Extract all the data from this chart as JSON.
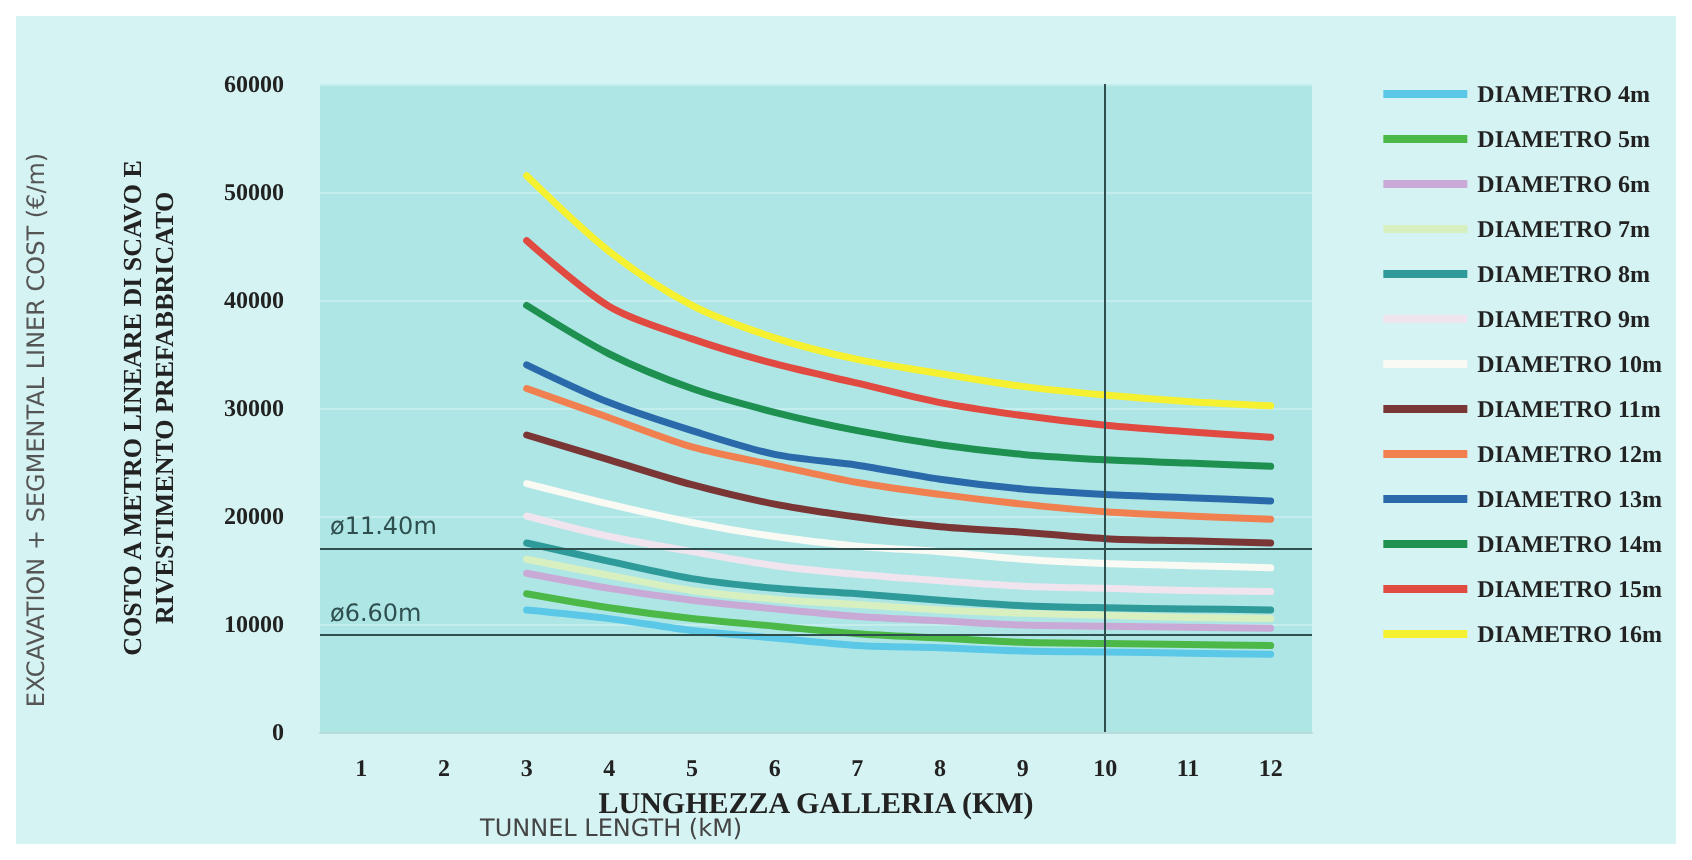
{
  "chart_data": {
    "type": "line",
    "xlabel": "LUNGHEZZA GALLERIA (KM)",
    "ylabel": "COSTO A METRO LINEARE DI SCAVO E\nRIVESTIMENTO PREFABBRICATO",
    "annotations": [
      "EXCAVATION + SEGMENTAL LINER COST (€/m)",
      "TUNNEL LENGTH (kM)"
    ],
    "x": [
      3,
      4,
      5,
      6,
      7,
      8,
      9,
      10,
      11,
      12
    ],
    "series": [
      {
        "name": "DIAMETRO 4m",
        "color": "#5bc8e8",
        "values": [
          11300,
          10500,
          9400,
          8700,
          8000,
          7800,
          7500,
          7400,
          7300,
          7200
        ]
      },
      {
        "name": "DIAMETRO 5m",
        "color": "#4cb848",
        "values": [
          12800,
          11500,
          10500,
          9800,
          9100,
          8700,
          8300,
          8200,
          8100,
          8000
        ]
      },
      {
        "name": "DIAMETRO 6m",
        "color": "#c9a9d6",
        "values": [
          14700,
          13300,
          12200,
          11400,
          10700,
          10300,
          9900,
          9800,
          9700,
          9600
        ]
      },
      {
        "name": "DIAMETRO 7m",
        "color": "#d8f0c0",
        "values": [
          16000,
          14500,
          13100,
          12300,
          11800,
          11300,
          11000,
          10800,
          10600,
          10500
        ]
      },
      {
        "name": "DIAMETRO 8m",
        "color": "#2e9a9a",
        "values": [
          17500,
          15800,
          14200,
          13300,
          12800,
          12200,
          11700,
          11500,
          11400,
          11300
        ]
      },
      {
        "name": "DIAMETRO 9m",
        "color": "#f0e4ee",
        "values": [
          20000,
          18100,
          16700,
          15400,
          14600,
          14000,
          13500,
          13300,
          13100,
          13000
        ]
      },
      {
        "name": "DIAMETRO 10m",
        "color": "#fafaf5",
        "values": [
          23000,
          21100,
          19400,
          18100,
          17200,
          16700,
          16000,
          15600,
          15400,
          15200
        ]
      },
      {
        "name": "DIAMETRO 11m",
        "color": "#7a3535",
        "values": [
          27500,
          25200,
          22900,
          21100,
          19900,
          19000,
          18500,
          17900,
          17700,
          17500
        ]
      },
      {
        "name": "DIAMETRO 12m",
        "color": "#f08050",
        "values": [
          31800,
          29100,
          26400,
          24700,
          23100,
          22000,
          21100,
          20400,
          20000,
          19700
        ]
      },
      {
        "name": "DIAMETRO 13m",
        "color": "#2a6aaa",
        "values": [
          34000,
          30500,
          27900,
          25700,
          24700,
          23400,
          22500,
          22000,
          21700,
          21400
        ]
      },
      {
        "name": "DIAMETRO 14m",
        "color": "#1e9050",
        "values": [
          39500,
          35000,
          31800,
          29600,
          27900,
          26600,
          25700,
          25200,
          24900,
          24600
        ]
      },
      {
        "name": "DIAMETRO 15m",
        "color": "#e04a40",
        "values": [
          45500,
          39400,
          36400,
          34100,
          32300,
          30500,
          29300,
          28400,
          27800,
          27300
        ]
      },
      {
        "name": "DIAMETRO 16m",
        "color": "#f5f030",
        "values": [
          51500,
          44500,
          39500,
          36500,
          34500,
          33200,
          32000,
          31200,
          30600,
          30200
        ]
      }
    ],
    "xlim": [
      0.5,
      12.5
    ],
    "xticks": [
      1,
      2,
      3,
      4,
      5,
      6,
      7,
      8,
      9,
      10,
      11,
      12
    ],
    "ylim": [
      0,
      60000
    ],
    "yticks": [
      0,
      10000,
      20000,
      30000,
      40000,
      50000,
      60000
    ],
    "ref_lines": [
      {
        "axis": "y",
        "value": 17000,
        "label": "ø11.40m",
        "color": "#2f4f4f"
      },
      {
        "axis": "y",
        "value": 9000,
        "label": "ø6.60m",
        "color": "#2f4f4f"
      },
      {
        "axis": "x",
        "value": 10,
        "color": "#2f4f4f"
      }
    ],
    "grid": "y",
    "legend": "right",
    "marker": "none",
    "line_style": "solid"
  }
}
